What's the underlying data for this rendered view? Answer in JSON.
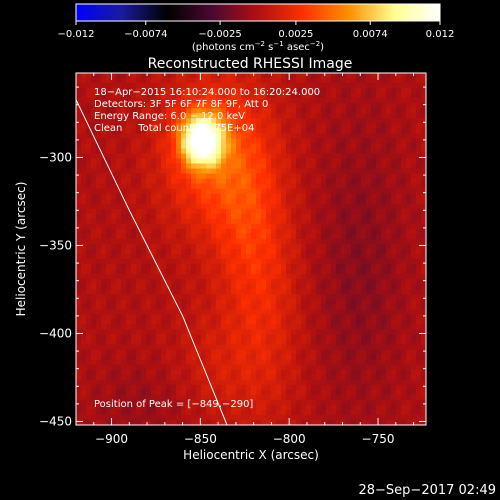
{
  "chart_data": {
    "type": "heatmap",
    "title": "Reconstructed RHESSI Image",
    "xlabel": "Heliocentric X (arcsec)",
    "ylabel": "Heliocentric Y (arcsec)",
    "xlim": [
      -920,
      -723
    ],
    "ylim": [
      -452,
      -252
    ],
    "x_ticks": [
      -900,
      -850,
      -800,
      -750
    ],
    "y_ticks": [
      -450,
      -400,
      -350,
      -300
    ],
    "colorbar": {
      "min": -0.012,
      "max": 0.012,
      "tick_values": [
        -0.012,
        -0.0074,
        -0.0025,
        0.0025,
        0.0074,
        0.012
      ],
      "tick_labels": [
        "−0.012",
        "−0.0074",
        "−0.0025",
        "0.0025",
        "0.0074",
        "0.012"
      ],
      "unit_main": "(photons cm",
      "unit_exp1": "−2",
      "unit_mid1": " s",
      "unit_exp2": "−1",
      "unit_mid2": " asec",
      "unit_exp3": "−2",
      "unit_end": ")",
      "colors": [
        "#0000ff",
        "#1a1aa0",
        "#000000",
        "#4a0a30",
        "#b01010",
        "#ff3000",
        "#ff9000",
        "#ffff90",
        "#ffffff"
      ]
    },
    "annotations": [
      "18−Apr−2015 16:10:24.000 to 16:20:24.000",
      "Detectors: 3F 5F 6F 7F 8F 9F, Att 0",
      "Energy Range: 6.0 − 12.0 keV",
      "Clean     Total counts: 7.75E+04"
    ],
    "peak": {
      "label": "Position of Peak = [−849,−290]",
      "x": -849,
      "y": -290
    },
    "sources": [
      {
        "x": -849,
        "y": -290,
        "sx": 8,
        "sy": 10,
        "amp": 0.012
      },
      {
        "x": -845,
        "y": -298,
        "sx": 20,
        "sy": 30,
        "amp": 0.0035
      },
      {
        "x": -825,
        "y": -330,
        "sx": 14,
        "sy": 40,
        "amp": 0.0022
      },
      {
        "x": -812,
        "y": -380,
        "sx": 14,
        "sy": 50,
        "amp": 0.0016
      },
      {
        "x": -840,
        "y": -420,
        "sx": 20,
        "sy": 25,
        "amp": 0.0012
      },
      {
        "x": -760,
        "y": -360,
        "sx": 18,
        "sy": 60,
        "amp": -0.0012
      },
      {
        "x": -880,
        "y": -440,
        "sx": 22,
        "sy": 18,
        "amp": -0.0008
      }
    ],
    "limb": [
      [
        -921,
        -265
      ],
      [
        -890,
        -330
      ],
      [
        -860,
        -390
      ],
      [
        -835,
        -452
      ]
    ]
  },
  "footer": {
    "timestamp": "28−Sep−2017 02:49"
  }
}
